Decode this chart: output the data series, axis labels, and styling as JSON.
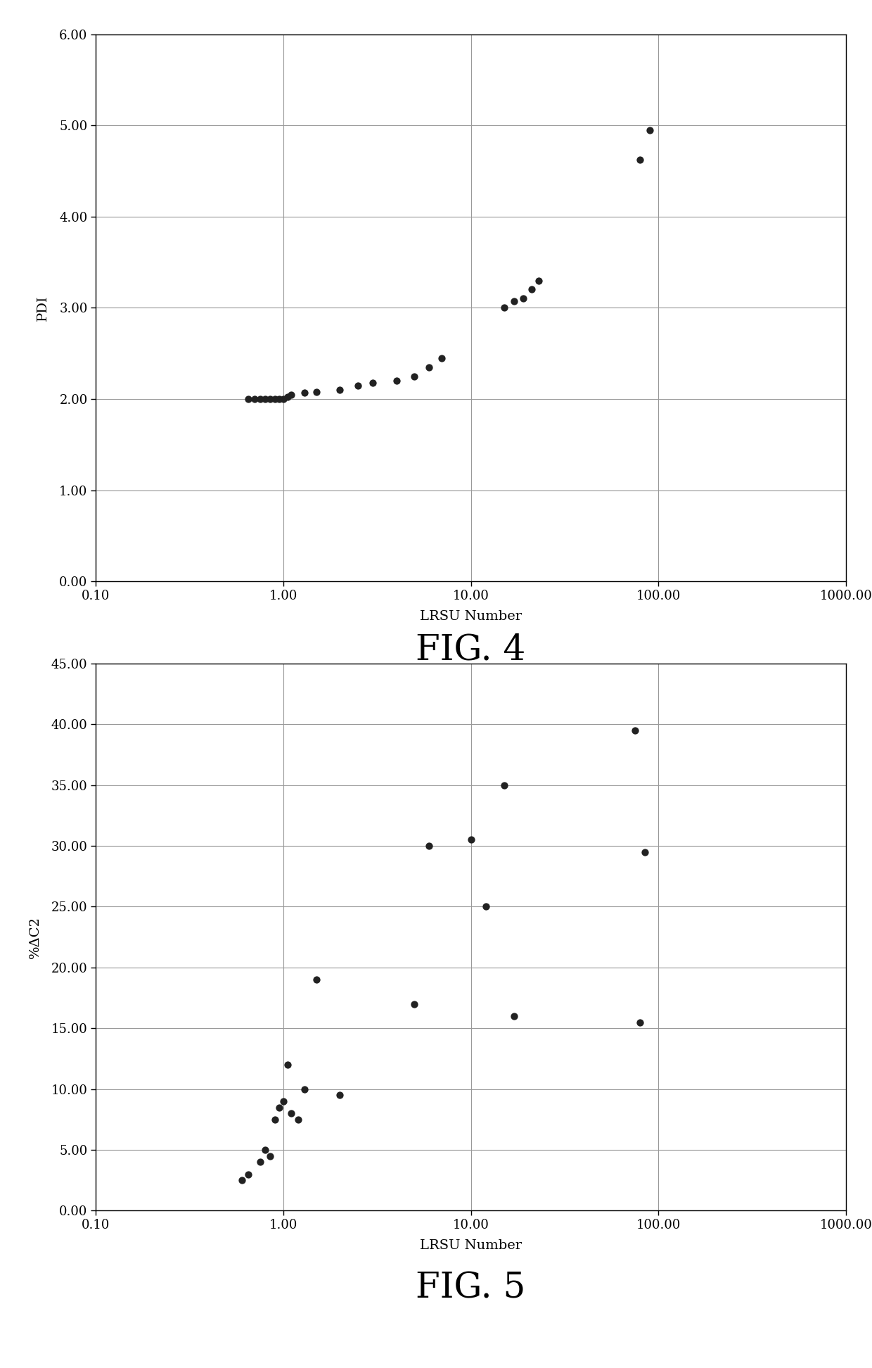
{
  "fig4": {
    "title": "FIG. 4",
    "xlabel": "LRSU Number",
    "ylabel": "PDI",
    "xlim": [
      0.1,
      1000.0
    ],
    "ylim": [
      0.0,
      6.0
    ],
    "yticks": [
      0.0,
      1.0,
      2.0,
      3.0,
      4.0,
      5.0,
      6.0
    ],
    "x": [
      0.65,
      0.7,
      0.75,
      0.8,
      0.85,
      0.9,
      0.95,
      1.0,
      1.05,
      1.1,
      1.3,
      1.5,
      2.0,
      2.5,
      3.0,
      4.0,
      5.0,
      6.0,
      7.0,
      15.0,
      17.0,
      19.0,
      21.0,
      23.0,
      80.0,
      90.0
    ],
    "y": [
      2.0,
      2.0,
      2.0,
      2.0,
      2.0,
      2.0,
      2.0,
      2.0,
      2.02,
      2.05,
      2.07,
      2.08,
      2.1,
      2.15,
      2.18,
      2.2,
      2.25,
      2.35,
      2.45,
      3.0,
      3.07,
      3.1,
      3.2,
      3.3,
      4.62,
      4.95
    ]
  },
  "fig5": {
    "title": "FIG. 5",
    "xlabel": "LRSU Number",
    "ylabel": "%ΔC2",
    "xlim": [
      0.1,
      1000.0
    ],
    "ylim": [
      0.0,
      45.0
    ],
    "yticks": [
      0.0,
      5.0,
      10.0,
      15.0,
      20.0,
      25.0,
      30.0,
      35.0,
      40.0,
      45.0
    ],
    "x": [
      0.6,
      0.65,
      0.75,
      0.8,
      0.85,
      0.9,
      0.95,
      1.0,
      1.05,
      1.1,
      1.2,
      1.3,
      1.5,
      2.0,
      5.0,
      6.0,
      10.0,
      12.0,
      15.0,
      17.0,
      75.0,
      80.0,
      85.0
    ],
    "y": [
      2.5,
      3.0,
      4.0,
      5.0,
      4.5,
      7.5,
      8.5,
      9.0,
      12.0,
      8.0,
      7.5,
      10.0,
      19.0,
      9.5,
      17.0,
      30.0,
      30.5,
      25.0,
      35.0,
      16.0,
      39.5,
      15.5,
      29.5
    ]
  },
  "marker_color": "#222222",
  "marker_size": 55,
  "grid_color": "#999999",
  "fig_bg": "#ffffff",
  "font_family": "DejaVu Serif",
  "axis_label_fontsize": 14,
  "tick_fontsize": 13,
  "fig_label_fontsize": 36
}
